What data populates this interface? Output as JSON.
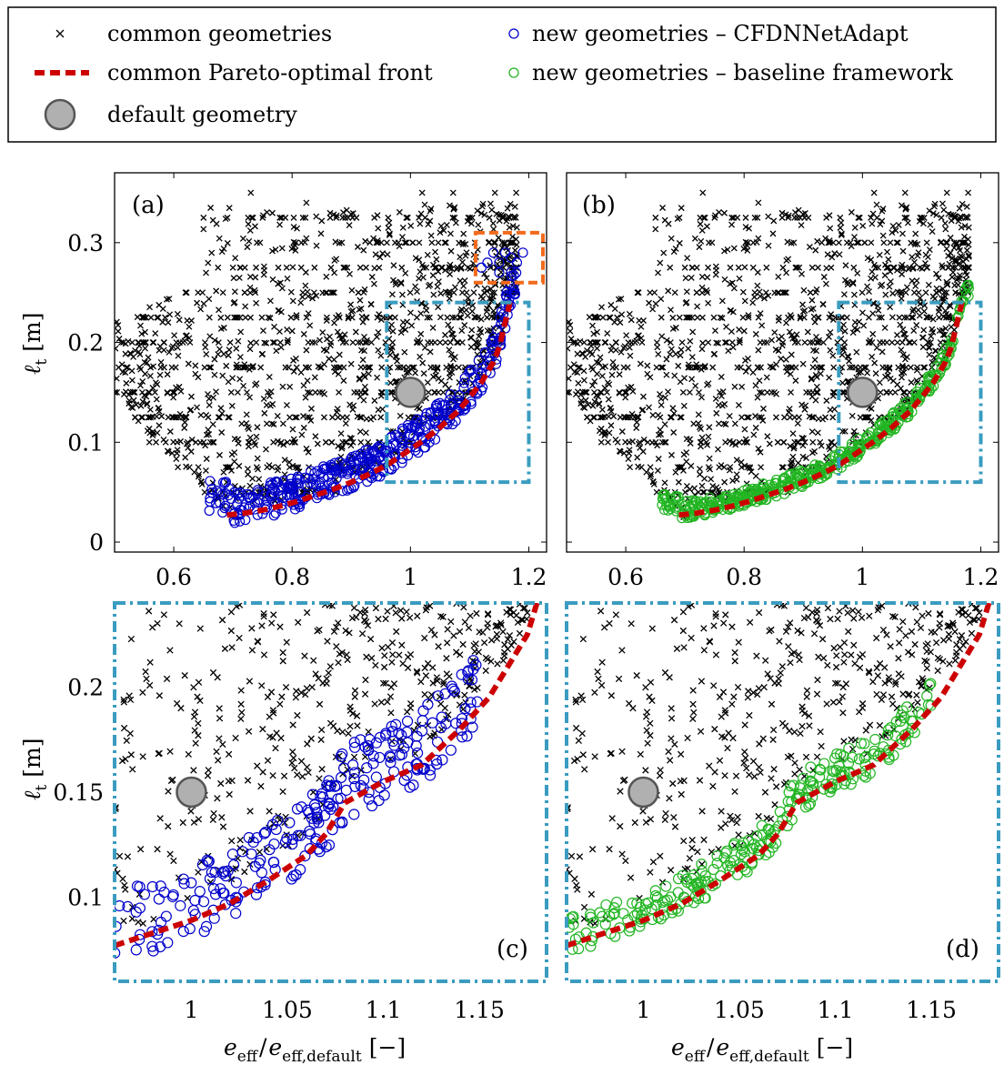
{
  "legend": {
    "common": "common geometries",
    "front": "common Pareto-optimal front",
    "default": "default geometry",
    "cfdnn": "new geometries – CFDNNetAdapt",
    "baseline": "new geometries – baseline framework"
  },
  "colors": {
    "common": "#000000",
    "front": "#cc0000",
    "cfdnn": "#0000cc",
    "baseline": "#22b522",
    "default_fill": "#b0b0b0",
    "default_edge": "#555555",
    "zoom_box": "#3a9cc0",
    "highlight_box": "#f26a1b"
  },
  "panels": {
    "a": {
      "tag": "(a)",
      "ylabel": "ℓ",
      "ylabel_sub": "t",
      "ylabel_unit": "[m]"
    },
    "b": {
      "tag": "(b)"
    },
    "c": {
      "tag": "(c)",
      "ylabel": "ℓ",
      "ylabel_sub": "t",
      "ylabel_unit": "[m]",
      "xlabel_main": "e",
      "xlabel_sub1": "eff",
      "xlabel_sep": "/",
      "xlabel_sub2": "eff,default",
      "xlabel_unit": "[−]"
    },
    "d": {
      "tag": "(d)",
      "xlabel_main": "e",
      "xlabel_sub1": "eff",
      "xlabel_sep": "/",
      "xlabel_sub2": "eff,default",
      "xlabel_unit": "[−]"
    }
  },
  "chart_data": [
    {
      "panel": "a",
      "type": "scatter",
      "xlim": [
        0.5,
        1.23
      ],
      "ylim": [
        -0.01,
        0.37
      ],
      "xticks": [
        0.6,
        0.8,
        1,
        1.2
      ],
      "xtick_labels": [
        "0.6",
        "0.8",
        "1",
        "1.2"
      ],
      "yticks": [
        0,
        0.1,
        0.2,
        0.3
      ],
      "ytick_labels": [
        "0",
        "0.1",
        "0.2",
        "0.3"
      ],
      "pareto_front": {
        "x": [
          0.69,
          0.72,
          0.75,
          0.78,
          0.81,
          0.84,
          0.87,
          0.9,
          0.93,
          0.96,
          0.99,
          1.02,
          1.05,
          1.08,
          1.1,
          1.12,
          1.14,
          1.15,
          1.16,
          1.17
        ],
        "y": [
          0.027,
          0.029,
          0.032,
          0.036,
          0.041,
          0.047,
          0.053,
          0.06,
          0.068,
          0.077,
          0.089,
          0.101,
          0.115,
          0.131,
          0.145,
          0.16,
          0.18,
          0.195,
          0.22,
          0.245
        ]
      },
      "default_geometry": {
        "x": 1.0,
        "y": 0.15
      },
      "new_series": "cfdnn",
      "zoom_box": {
        "x": [
          0.96,
          1.2
        ],
        "y": [
          0.06,
          0.24
        ]
      },
      "highlight_box": {
        "x": [
          1.11,
          1.23
        ],
        "y": [
          0.26,
          0.31
        ]
      }
    },
    {
      "panel": "b",
      "type": "scatter",
      "xlim": [
        0.5,
        1.23
      ],
      "ylim": [
        -0.01,
        0.37
      ],
      "xticks": [
        0.6,
        0.8,
        1,
        1.2
      ],
      "xtick_labels": [
        "0.6",
        "0.8",
        "1",
        "1.2"
      ],
      "yticks": [
        0,
        0.1,
        0.2,
        0.3
      ],
      "pareto_front": {
        "x": [
          0.69,
          0.72,
          0.75,
          0.78,
          0.81,
          0.84,
          0.87,
          0.9,
          0.93,
          0.96,
          0.99,
          1.02,
          1.05,
          1.08,
          1.1,
          1.12,
          1.14,
          1.15,
          1.16,
          1.17
        ],
        "y": [
          0.027,
          0.029,
          0.032,
          0.036,
          0.041,
          0.047,
          0.053,
          0.06,
          0.068,
          0.077,
          0.089,
          0.101,
          0.115,
          0.131,
          0.145,
          0.16,
          0.18,
          0.195,
          0.22,
          0.245
        ]
      },
      "default_geometry": {
        "x": 1.0,
        "y": 0.15
      },
      "new_series": "baseline",
      "zoom_box": {
        "x": [
          0.96,
          1.2
        ],
        "y": [
          0.06,
          0.24
        ]
      }
    },
    {
      "panel": "c",
      "type": "scatter",
      "xlim": [
        0.96,
        1.185
      ],
      "ylim": [
        0.06,
        0.24
      ],
      "xticks": [
        1,
        1.05,
        1.1,
        1.15
      ],
      "xtick_labels": [
        "1",
        "1.05",
        "1.1",
        "1.15"
      ],
      "yticks": [
        0.1,
        0.15,
        0.2
      ],
      "ytick_labels": [
        "0.1",
        "0.15",
        "0.2"
      ],
      "pareto_front": {
        "x": [
          0.96,
          0.98,
          1.0,
          1.02,
          1.04,
          1.06,
          1.07,
          1.08,
          1.1,
          1.12,
          1.14,
          1.155,
          1.165,
          1.175,
          1.18
        ],
        "y": [
          0.077,
          0.083,
          0.089,
          0.097,
          0.108,
          0.12,
          0.13,
          0.145,
          0.155,
          0.163,
          0.18,
          0.195,
          0.21,
          0.225,
          0.24
        ]
      },
      "default_geometry": {
        "x": 1.0,
        "y": 0.15
      },
      "new_series": "cfdnn"
    },
    {
      "panel": "d",
      "type": "scatter",
      "xlim": [
        0.96,
        1.185
      ],
      "ylim": [
        0.06,
        0.24
      ],
      "xticks": [
        1,
        1.05,
        1.1,
        1.15
      ],
      "xtick_labels": [
        "1",
        "1.05",
        "1.1",
        "1.15"
      ],
      "yticks": [
        0.1,
        0.15,
        0.2
      ],
      "pareto_front": {
        "x": [
          0.96,
          0.98,
          1.0,
          1.02,
          1.04,
          1.06,
          1.07,
          1.08,
          1.1,
          1.12,
          1.14,
          1.155,
          1.165,
          1.175,
          1.18
        ],
        "y": [
          0.077,
          0.083,
          0.089,
          0.097,
          0.108,
          0.12,
          0.13,
          0.145,
          0.155,
          0.163,
          0.18,
          0.195,
          0.21,
          0.225,
          0.24
        ]
      },
      "default_geometry": {
        "x": 1.0,
        "y": 0.15
      },
      "new_series": "baseline"
    }
  ]
}
